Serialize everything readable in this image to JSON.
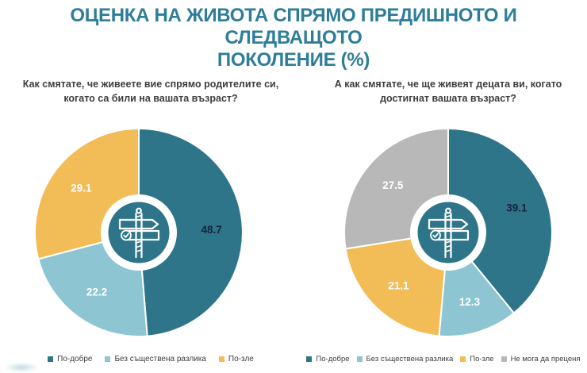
{
  "slide": {
    "title_lines": [
      "ОЦЕНКА НА ЖИВОТА СПРЯМО ПРЕДИШНОТО И СЛЕДВАЩОТО",
      "ПОКОЛЕНИЕ (%)"
    ],
    "title_color": "#2E7D99",
    "text_color": "#3D3D3D"
  },
  "chart_data": [
    {
      "type": "pie",
      "style": "donut",
      "question": "Как смятате, че живеете вие спрямо родителите си, когато са били на вашата възраст?",
      "question_lines": [
        "Как смятате, че живеете вие спрямо родителите си,",
        "когато са били на вашата възраст?"
      ],
      "labels": [
        "По-добре",
        "Без съществена разлика",
        "По-зле"
      ],
      "values": [
        48.7,
        22.2,
        29.1
      ],
      "colors": [
        "#2E7589",
        "#8DC5D2",
        "#F2BC57"
      ],
      "label_colors": [
        "#16243D",
        "#FFFFFF",
        "#FFFFFF"
      ],
      "start_angle_deg": 0,
      "direction": "clockwise",
      "legend_position": "bottom",
      "center_icon": "signpost-icon"
    },
    {
      "type": "pie",
      "style": "donut",
      "question": "А как смятате, че ще живеят децата ви, когато достигнат вашата възраст?",
      "question_lines": [
        "А как смятате, че ще живеят децата ви, когато",
        "достигнат вашата възраст?"
      ],
      "labels": [
        "По-добре",
        "Без съществена разлика",
        "По-зле",
        "Не мога да преценя"
      ],
      "values": [
        39.1,
        12.3,
        21.1,
        27.5
      ],
      "colors": [
        "#2E7589",
        "#8DC5D2",
        "#F2BC57",
        "#B8B8B8"
      ],
      "label_colors": [
        "#16243D",
        "#FFFFFF",
        "#FFFFFF",
        "#FFFFFF"
      ],
      "start_angle_deg": 0,
      "direction": "clockwise",
      "legend_position": "bottom",
      "center_icon": "signpost-icon"
    }
  ]
}
